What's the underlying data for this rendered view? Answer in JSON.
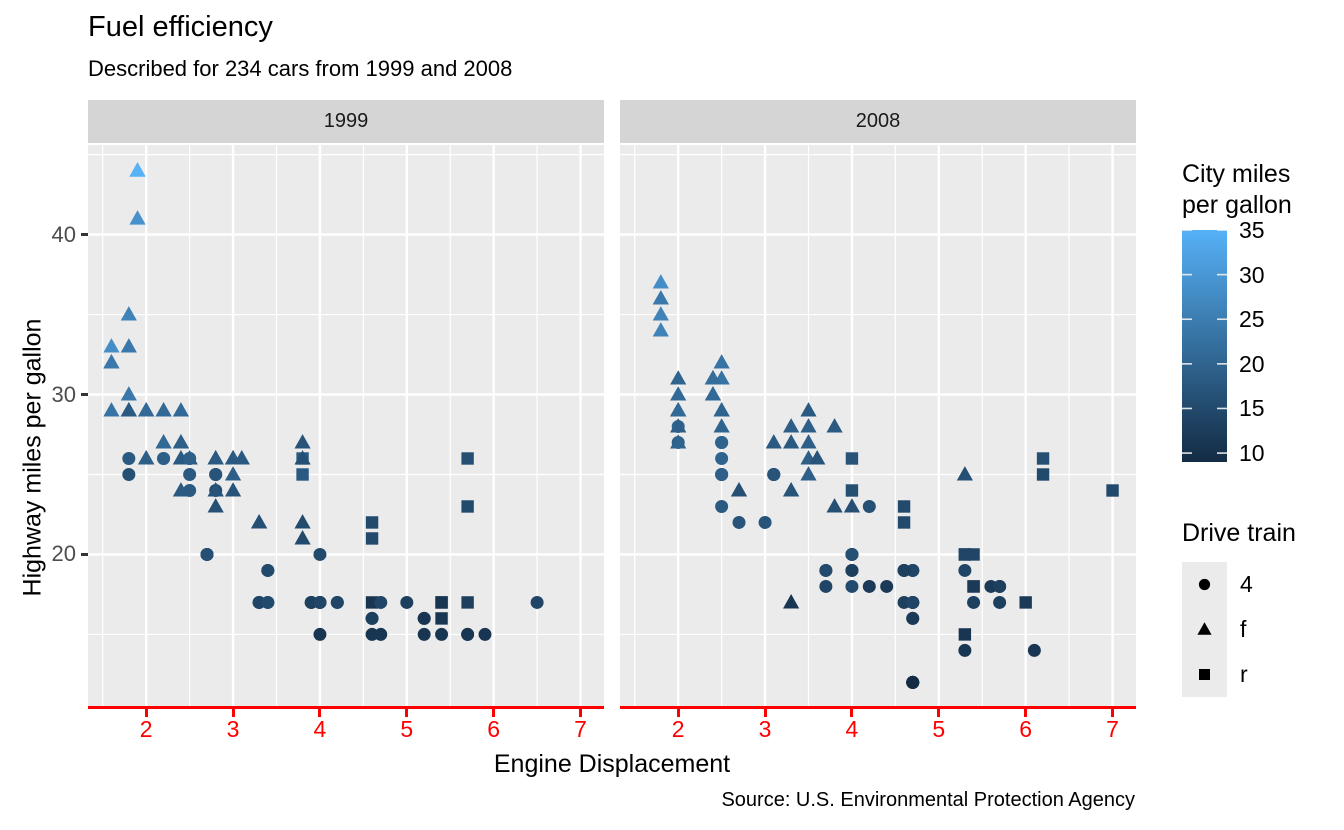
{
  "chart_data": {
    "type": "scatter",
    "title": "Fuel efficiency",
    "subtitle": "Described for 234 cars from 1999 and 2008",
    "caption": "Source: U.S. Environmental Protection Agency",
    "x_label": "Engine Displacement",
    "y_label": "Highway miles per gallon",
    "facets": [
      "1999",
      "2008"
    ],
    "x_ticks": [
      2,
      3,
      4,
      5,
      6,
      7
    ],
    "x_minor": [
      1.5,
      2.5,
      3.5,
      4.5,
      5.5,
      6.5
    ],
    "y_ticks": [
      20,
      30,
      40
    ],
    "y_minor": [
      15,
      25,
      35,
      45
    ],
    "xlim": [
      1.33,
      7.27
    ],
    "ylim": [
      10.4,
      45.6
    ],
    "grid": true,
    "legend_position": "right",
    "theme": {
      "panel_bg": "#EBEBEB",
      "strip_bg": "#D5D5D5",
      "grid_color": "#FFFFFF",
      "axis_red": "#FF0000",
      "tick_text": "#4D4D4D",
      "key_bg": "#EBEBEB"
    },
    "color_scale": {
      "title": "City miles per gallon",
      "title_lines": [
        "City miles",
        "per gallon"
      ],
      "low": "#132B43",
      "high": "#56B1F7",
      "limits": [
        9,
        35
      ],
      "ticks": [
        35,
        30,
        25,
        20,
        15,
        10
      ]
    },
    "shape_legend": {
      "title": "Drive train",
      "items": [
        {
          "shape": "circle",
          "label": "4"
        },
        {
          "shape": "triangle",
          "label": "f"
        },
        {
          "shape": "square",
          "label": "r"
        }
      ]
    },
    "point_key": [
      "displ",
      "hwy",
      "cty",
      "drv"
    ],
    "points": {
      "1999": [
        [
          1.8,
          29,
          18,
          "f"
        ],
        [
          1.8,
          29,
          21,
          "f"
        ],
        [
          2.8,
          26,
          16,
          "f"
        ],
        [
          2.8,
          26,
          18,
          "f"
        ],
        [
          1.8,
          26,
          18,
          "4"
        ],
        [
          1.8,
          25,
          16,
          "4"
        ],
        [
          2.8,
          25,
          15,
          "4"
        ],
        [
          2.8,
          25,
          17,
          "4"
        ],
        [
          2.8,
          24,
          15,
          "4"
        ],
        [
          5.7,
          17,
          13,
          "r"
        ],
        [
          5.7,
          26,
          16,
          "r"
        ],
        [
          5.7,
          23,
          15,
          "r"
        ],
        [
          5.7,
          15,
          11,
          "4"
        ],
        [
          6.5,
          17,
          14,
          "4"
        ],
        [
          2.4,
          27,
          19,
          "f"
        ],
        [
          3.1,
          26,
          18,
          "f"
        ],
        [
          2.4,
          24,
          18,
          "f"
        ],
        [
          3.0,
          24,
          17,
          "f"
        ],
        [
          3.3,
          22,
          16,
          "f"
        ],
        [
          3.3,
          22,
          16,
          "f"
        ],
        [
          3.8,
          22,
          15,
          "f"
        ],
        [
          3.8,
          21,
          15,
          "f"
        ],
        [
          3.9,
          17,
          13,
          "4"
        ],
        [
          3.9,
          17,
          14,
          "4"
        ],
        [
          3.9,
          17,
          13,
          "4"
        ],
        [
          5.2,
          16,
          11,
          "4"
        ],
        [
          5.2,
          15,
          11,
          "4"
        ],
        [
          5.2,
          16,
          11,
          "4"
        ],
        [
          5.9,
          15,
          11,
          "4"
        ],
        [
          4.6,
          17,
          11,
          "r"
        ],
        [
          5.4,
          17,
          11,
          "r"
        ],
        [
          4.0,
          17,
          14,
          "4"
        ],
        [
          4.0,
          17,
          15,
          "4"
        ],
        [
          4.0,
          17,
          14,
          "4"
        ],
        [
          4.0,
          17,
          14,
          "4"
        ],
        [
          4.2,
          17,
          14,
          "4"
        ],
        [
          4.2,
          17,
          14,
          "4"
        ],
        [
          4.6,
          16,
          13,
          "4"
        ],
        [
          4.6,
          16,
          13,
          "4"
        ],
        [
          5.4,
          15,
          11,
          "4"
        ],
        [
          3.8,
          26,
          18,
          "r"
        ],
        [
          3.8,
          25,
          18,
          "r"
        ],
        [
          4.6,
          21,
          15,
          "r"
        ],
        [
          4.6,
          22,
          15,
          "r"
        ],
        [
          1.6,
          33,
          28,
          "f"
        ],
        [
          1.6,
          32,
          24,
          "f"
        ],
        [
          1.6,
          32,
          25,
          "f"
        ],
        [
          1.6,
          29,
          23,
          "f"
        ],
        [
          1.6,
          32,
          24,
          "f"
        ],
        [
          2.4,
          26,
          18,
          "f"
        ],
        [
          2.4,
          27,
          18,
          "f"
        ],
        [
          2.4,
          26,
          18,
          "f"
        ],
        [
          2.5,
          26,
          18,
          "f"
        ],
        [
          2.5,
          26,
          18,
          "f"
        ],
        [
          2.0,
          26,
          19,
          "f"
        ],
        [
          2.0,
          29,
          19,
          "f"
        ],
        [
          4.0,
          20,
          15,
          "4"
        ],
        [
          4.7,
          17,
          14,
          "4"
        ],
        [
          4.0,
          15,
          11,
          "4"
        ],
        [
          4.6,
          15,
          11,
          "4"
        ],
        [
          5.4,
          17,
          11,
          "r"
        ],
        [
          5.4,
          16,
          11,
          "r"
        ],
        [
          4.0,
          17,
          14,
          "4"
        ],
        [
          5.0,
          17,
          13,
          "4"
        ],
        [
          2.4,
          29,
          21,
          "f"
        ],
        [
          2.4,
          27,
          19,
          "f"
        ],
        [
          3.0,
          26,
          18,
          "f"
        ],
        [
          3.0,
          25,
          19,
          "f"
        ],
        [
          3.3,
          17,
          14,
          "4"
        ],
        [
          3.3,
          17,
          15,
          "4"
        ],
        [
          3.3,
          17,
          14,
          "4"
        ],
        [
          3.1,
          26,
          18,
          "f"
        ],
        [
          3.8,
          26,
          16,
          "f"
        ],
        [
          3.8,
          27,
          17,
          "f"
        ],
        [
          2.5,
          25,
          18,
          "4"
        ],
        [
          2.5,
          24,
          18,
          "4"
        ],
        [
          2.2,
          26,
          21,
          "4"
        ],
        [
          2.2,
          26,
          19,
          "4"
        ],
        [
          2.5,
          26,
          19,
          "4"
        ],
        [
          2.5,
          26,
          19,
          "4"
        ],
        [
          2.7,
          20,
          15,
          "4"
        ],
        [
          2.7,
          20,
          16,
          "4"
        ],
        [
          3.4,
          19,
          15,
          "4"
        ],
        [
          3.4,
          17,
          15,
          "4"
        ],
        [
          2.2,
          29,
          21,
          "f"
        ],
        [
          2.2,
          27,
          21,
          "f"
        ],
        [
          3.0,
          26,
          18,
          "f"
        ],
        [
          3.0,
          26,
          18,
          "f"
        ],
        [
          2.2,
          27,
          21,
          "f"
        ],
        [
          2.2,
          29,
          21,
          "f"
        ],
        [
          3.0,
          26,
          18,
          "f"
        ],
        [
          3.0,
          26,
          18,
          "f"
        ],
        [
          1.8,
          30,
          24,
          "f"
        ],
        [
          1.8,
          33,
          24,
          "f"
        ],
        [
          1.8,
          35,
          26,
          "f"
        ],
        [
          4.7,
          15,
          11,
          "4"
        ],
        [
          2.7,
          20,
          15,
          "4"
        ],
        [
          2.7,
          20,
          16,
          "4"
        ],
        [
          3.4,
          17,
          15,
          "4"
        ],
        [
          3.4,
          19,
          15,
          "4"
        ],
        [
          2.0,
          29,
          21,
          "f"
        ],
        [
          2.0,
          26,
          19,
          "f"
        ],
        [
          2.8,
          24,
          17,
          "f"
        ],
        [
          1.9,
          44,
          33,
          "f"
        ],
        [
          2.0,
          29,
          21,
          "f"
        ],
        [
          2.0,
          26,
          19,
          "f"
        ],
        [
          2.8,
          23,
          16,
          "f"
        ],
        [
          2.8,
          24,
          17,
          "f"
        ],
        [
          1.9,
          44,
          35,
          "f"
        ],
        [
          1.9,
          41,
          29,
          "f"
        ],
        [
          2.0,
          29,
          21,
          "f"
        ],
        [
          2.0,
          26,
          19,
          "f"
        ],
        [
          1.8,
          29,
          21,
          "f"
        ],
        [
          1.8,
          29,
          18,
          "f"
        ],
        [
          2.8,
          26,
          16,
          "f"
        ],
        [
          2.8,
          26,
          18,
          "f"
        ],
        [
          5.7,
          15,
          11,
          "4"
        ]
      ],
      "2008": [
        [
          2.0,
          31,
          20,
          "f"
        ],
        [
          2.0,
          30,
          21,
          "f"
        ],
        [
          3.1,
          27,
          18,
          "f"
        ],
        [
          2.0,
          28,
          20,
          "4"
        ],
        [
          2.0,
          27,
          19,
          "4"
        ],
        [
          3.1,
          25,
          17,
          "4"
        ],
        [
          3.1,
          25,
          15,
          "4"
        ],
        [
          3.1,
          25,
          17,
          "4"
        ],
        [
          4.2,
          23,
          16,
          "4"
        ],
        [
          5.3,
          20,
          14,
          "r"
        ],
        [
          5.3,
          15,
          11,
          "r"
        ],
        [
          5.3,
          20,
          14,
          "r"
        ],
        [
          6.0,
          17,
          12,
          "r"
        ],
        [
          6.2,
          26,
          16,
          "r"
        ],
        [
          6.2,
          25,
          15,
          "r"
        ],
        [
          7.0,
          24,
          15,
          "r"
        ],
        [
          5.3,
          19,
          14,
          "4"
        ],
        [
          5.3,
          14,
          11,
          "4"
        ],
        [
          2.4,
          30,
          22,
          "f"
        ],
        [
          3.5,
          29,
          18,
          "f"
        ],
        [
          3.6,
          26,
          17,
          "f"
        ],
        [
          3.3,
          24,
          17,
          "f"
        ],
        [
          3.3,
          24,
          17,
          "f"
        ],
        [
          3.3,
          17,
          11,
          "f"
        ],
        [
          3.8,
          23,
          16,
          "f"
        ],
        [
          4.0,
          23,
          16,
          "f"
        ],
        [
          3.7,
          19,
          15,
          "4"
        ],
        [
          3.7,
          18,
          14,
          "4"
        ],
        [
          4.7,
          19,
          14,
          "4"
        ],
        [
          4.7,
          19,
          14,
          "4"
        ],
        [
          4.7,
          12,
          9,
          "4"
        ],
        [
          4.7,
          17,
          13,
          "4"
        ],
        [
          4.7,
          12,
          9,
          "4"
        ],
        [
          4.7,
          17,
          13,
          "4"
        ],
        [
          5.7,
          18,
          13,
          "4"
        ],
        [
          4.7,
          16,
          12,
          "4"
        ],
        [
          4.7,
          12,
          9,
          "4"
        ],
        [
          4.7,
          17,
          13,
          "4"
        ],
        [
          4.7,
          17,
          13,
          "4"
        ],
        [
          4.7,
          16,
          12,
          "4"
        ],
        [
          5.7,
          17,
          13,
          "4"
        ],
        [
          4.7,
          12,
          9,
          "4"
        ],
        [
          5.4,
          18,
          12,
          "r"
        ],
        [
          4.0,
          19,
          13,
          "4"
        ],
        [
          4.6,
          19,
          13,
          "4"
        ],
        [
          4.6,
          19,
          13,
          "4"
        ],
        [
          4.6,
          17,
          13,
          "4"
        ],
        [
          5.4,
          17,
          13,
          "4"
        ],
        [
          4.0,
          26,
          17,
          "r"
        ],
        [
          4.0,
          24,
          16,
          "r"
        ],
        [
          4.6,
          23,
          15,
          "r"
        ],
        [
          4.6,
          22,
          15,
          "r"
        ],
        [
          5.4,
          20,
          14,
          "r"
        ],
        [
          1.8,
          34,
          26,
          "f"
        ],
        [
          1.8,
          36,
          25,
          "f"
        ],
        [
          1.8,
          36,
          24,
          "f"
        ],
        [
          2.0,
          29,
          21,
          "f"
        ],
        [
          2.4,
          30,
          21,
          "f"
        ],
        [
          2.4,
          31,
          21,
          "f"
        ],
        [
          3.3,
          28,
          19,
          "f"
        ],
        [
          2.0,
          28,
          20,
          "f"
        ],
        [
          2.0,
          27,
          20,
          "f"
        ],
        [
          2.7,
          24,
          17,
          "f"
        ],
        [
          2.7,
          24,
          16,
          "f"
        ],
        [
          3.0,
          22,
          17,
          "4"
        ],
        [
          3.7,
          19,
          15,
          "4"
        ],
        [
          4.7,
          12,
          9,
          "4"
        ],
        [
          4.7,
          19,
          14,
          "4"
        ],
        [
          5.7,
          18,
          13,
          "4"
        ],
        [
          6.1,
          14,
          11,
          "4"
        ],
        [
          4.2,
          18,
          12,
          "4"
        ],
        [
          4.4,
          18,
          12,
          "4"
        ],
        [
          5.4,
          18,
          12,
          "r"
        ],
        [
          4.0,
          19,
          13,
          "4"
        ],
        [
          4.6,
          19,
          13,
          "4"
        ],
        [
          2.5,
          31,
          23,
          "f"
        ],
        [
          2.5,
          32,
          23,
          "f"
        ],
        [
          3.5,
          27,
          19,
          "f"
        ],
        [
          3.5,
          26,
          19,
          "f"
        ],
        [
          3.5,
          25,
          19,
          "f"
        ],
        [
          4.0,
          20,
          14,
          "4"
        ],
        [
          5.6,
          18,
          12,
          "4"
        ],
        [
          3.8,
          28,
          18,
          "f"
        ],
        [
          5.3,
          25,
          16,
          "f"
        ],
        [
          2.5,
          27,
          20,
          "4"
        ],
        [
          2.5,
          25,
          19,
          "4"
        ],
        [
          2.5,
          26,
          20,
          "4"
        ],
        [
          2.5,
          23,
          18,
          "4"
        ],
        [
          2.5,
          25,
          20,
          "4"
        ],
        [
          2.5,
          27,
          20,
          "4"
        ],
        [
          2.5,
          25,
          19,
          "4"
        ],
        [
          2.5,
          27,
          20,
          "4"
        ],
        [
          4.0,
          20,
          16,
          "4"
        ],
        [
          4.7,
          17,
          14,
          "4"
        ],
        [
          2.4,
          31,
          21,
          "f"
        ],
        [
          2.4,
          31,
          21,
          "f"
        ],
        [
          3.5,
          28,
          19,
          "f"
        ],
        [
          2.4,
          31,
          21,
          "f"
        ],
        [
          2.4,
          31,
          22,
          "f"
        ],
        [
          3.3,
          27,
          18,
          "f"
        ],
        [
          1.8,
          37,
          28,
          "f"
        ],
        [
          1.8,
          35,
          26,
          "f"
        ],
        [
          5.7,
          18,
          13,
          "4"
        ],
        [
          2.7,
          22,
          17,
          "4"
        ],
        [
          4.0,
          18,
          15,
          "4"
        ],
        [
          4.0,
          20,
          16,
          "4"
        ],
        [
          2.0,
          29,
          21,
          "f"
        ],
        [
          2.0,
          29,
          22,
          "f"
        ],
        [
          2.0,
          29,
          22,
          "f"
        ],
        [
          2.0,
          29,
          21,
          "f"
        ],
        [
          2.5,
          29,
          21,
          "f"
        ],
        [
          2.5,
          29,
          21,
          "f"
        ],
        [
          2.5,
          28,
          20,
          "f"
        ],
        [
          2.5,
          29,
          20,
          "f"
        ],
        [
          2.0,
          28,
          19,
          "f"
        ],
        [
          2.0,
          29,
          21,
          "f"
        ],
        [
          3.6,
          26,
          17,
          "f"
        ]
      ]
    }
  }
}
